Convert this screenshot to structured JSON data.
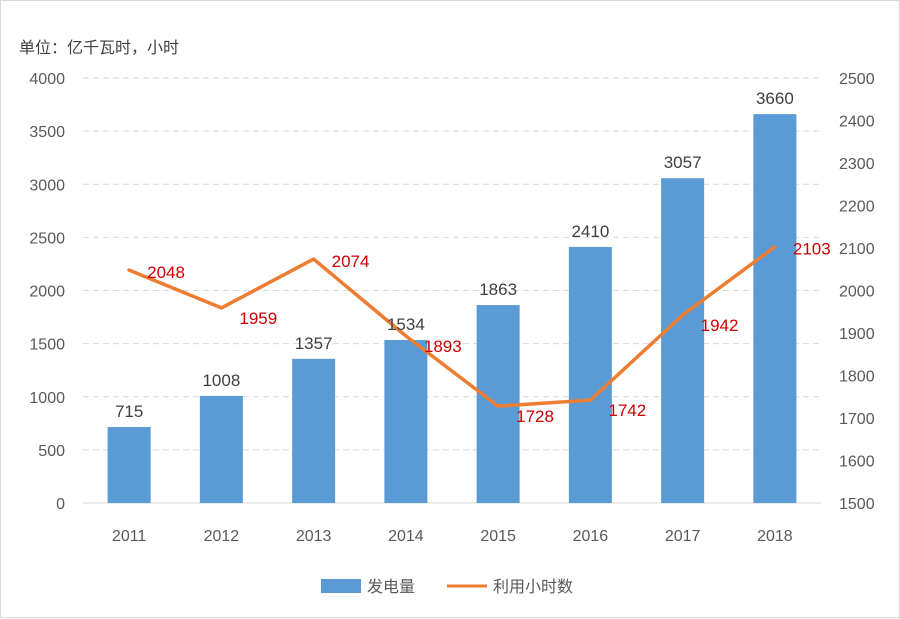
{
  "chart_data": {
    "type": "bar",
    "unit_label": "单位：亿千瓦时，小时",
    "categories": [
      "2011",
      "2012",
      "2013",
      "2014",
      "2015",
      "2016",
      "2017",
      "2018"
    ],
    "series": [
      {
        "name": "发电量",
        "type": "bar",
        "axis": "left",
        "color": "#5b9bd5",
        "values": [
          715,
          1008,
          1357,
          1534,
          1863,
          2410,
          3057,
          3660
        ]
      },
      {
        "name": "利用小时数",
        "type": "line",
        "axis": "right",
        "color": "#ed7d31",
        "label_color": "#cc0000",
        "values": [
          2048,
          1959,
          2074,
          1893,
          1728,
          1742,
          1942,
          2103
        ]
      }
    ],
    "y_left": {
      "min": 0,
      "max": 4000,
      "step": 500
    },
    "y_right": {
      "min": 1500,
      "max": 2500,
      "step": 100
    },
    "grid": true,
    "legend_position": "bottom"
  }
}
